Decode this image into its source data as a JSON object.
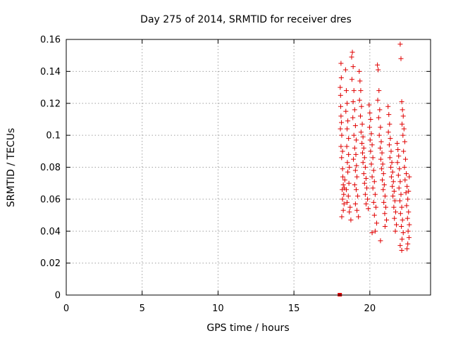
{
  "chart_data": {
    "type": "scatter",
    "title": "Day 275 of 2014, SRMTID for receiver dres",
    "xlabel": "GPS time / hours",
    "ylabel": "SRMTID / TECUs",
    "xlim": [
      0,
      24
    ],
    "ylim": [
      0,
      0.16
    ],
    "xticks": [
      0,
      5,
      10,
      15,
      20
    ],
    "xtick_labels": [
      "0",
      "5",
      "10",
      "15",
      "20"
    ],
    "yticks": [
      0,
      0.02,
      0.04,
      0.06,
      0.08,
      0.1,
      0.12,
      0.14,
      0.16
    ],
    "ytick_labels": [
      "0",
      "0.02",
      "0.04",
      "0.06",
      "0.08",
      "0.1",
      "0.12",
      "0.14",
      "0.16"
    ],
    "grid": true,
    "marker": "plus",
    "color": "#e00000",
    "zero_marker": {
      "x": 18.02,
      "y": 0.0
    },
    "series": [
      {
        "name": "SRMTID",
        "points": [
          [
            18.05,
            0.13
          ],
          [
            18.07,
            0.125
          ],
          [
            18.1,
            0.145
          ],
          [
            18.12,
            0.136
          ],
          [
            18.08,
            0.118
          ],
          [
            18.1,
            0.112
          ],
          [
            18.13,
            0.108
          ],
          [
            18.06,
            0.104
          ],
          [
            18.15,
            0.1
          ],
          [
            18.1,
            0.093
          ],
          [
            18.2,
            0.09
          ],
          [
            18.14,
            0.086
          ],
          [
            18.2,
            0.079
          ],
          [
            18.22,
            0.074
          ],
          [
            18.25,
            0.069
          ],
          [
            18.18,
            0.066
          ],
          [
            18.28,
            0.063
          ],
          [
            18.2,
            0.06
          ],
          [
            18.3,
            0.057
          ],
          [
            18.25,
            0.053
          ],
          [
            18.15,
            0.049
          ],
          [
            18.35,
            0.072
          ],
          [
            18.32,
            0.067
          ],
          [
            18.4,
            0.141
          ],
          [
            18.45,
            0.128
          ],
          [
            18.5,
            0.12
          ],
          [
            18.42,
            0.115
          ],
          [
            18.55,
            0.109
          ],
          [
            18.5,
            0.104
          ],
          [
            18.6,
            0.098
          ],
          [
            18.48,
            0.093
          ],
          [
            18.6,
            0.088
          ],
          [
            18.52,
            0.083
          ],
          [
            18.65,
            0.08
          ],
          [
            18.55,
            0.077
          ],
          [
            18.62,
            0.07
          ],
          [
            18.45,
            0.066
          ],
          [
            18.58,
            0.062
          ],
          [
            18.5,
            0.058
          ],
          [
            18.7,
            0.055
          ],
          [
            18.65,
            0.052
          ],
          [
            18.75,
            0.047
          ],
          [
            18.8,
            0.149
          ],
          [
            18.85,
            0.152
          ],
          [
            18.9,
            0.143
          ],
          [
            18.82,
            0.135
          ],
          [
            18.95,
            0.128
          ],
          [
            18.9,
            0.121
          ],
          [
            19.0,
            0.116
          ],
          [
            18.88,
            0.111
          ],
          [
            19.05,
            0.106
          ],
          [
            18.95,
            0.1
          ],
          [
            19.1,
            0.097
          ],
          [
            19.0,
            0.092
          ],
          [
            19.08,
            0.088
          ],
          [
            18.92,
            0.085
          ],
          [
            19.12,
            0.081
          ],
          [
            19.05,
            0.078
          ],
          [
            19.15,
            0.074
          ],
          [
            19.0,
            0.069
          ],
          [
            19.1,
            0.066
          ],
          [
            19.2,
            0.062
          ],
          [
            19.05,
            0.057
          ],
          [
            19.15,
            0.053
          ],
          [
            19.25,
            0.049
          ],
          [
            19.3,
            0.14
          ],
          [
            19.35,
            0.134
          ],
          [
            19.4,
            0.128
          ],
          [
            19.32,
            0.122
          ],
          [
            19.45,
            0.118
          ],
          [
            19.38,
            0.112
          ],
          [
            19.5,
            0.107
          ],
          [
            19.42,
            0.102
          ],
          [
            19.55,
            0.099
          ],
          [
            19.48,
            0.095
          ],
          [
            19.6,
            0.092
          ],
          [
            19.52,
            0.089
          ],
          [
            19.65,
            0.086
          ],
          [
            19.55,
            0.083
          ],
          [
            19.7,
            0.08
          ],
          [
            19.6,
            0.076
          ],
          [
            19.75,
            0.073
          ],
          [
            19.65,
            0.07
          ],
          [
            19.8,
            0.067
          ],
          [
            19.7,
            0.063
          ],
          [
            19.85,
            0.06
          ],
          [
            19.75,
            0.057
          ],
          [
            19.9,
            0.054
          ],
          [
            19.95,
            0.119
          ],
          [
            20.0,
            0.114
          ],
          [
            20.05,
            0.11
          ],
          [
            19.98,
            0.105
          ],
          [
            20.1,
            0.101
          ],
          [
            20.02,
            0.097
          ],
          [
            20.15,
            0.094
          ],
          [
            20.05,
            0.09
          ],
          [
            20.2,
            0.086
          ],
          [
            20.1,
            0.082
          ],
          [
            20.25,
            0.078
          ],
          [
            20.15,
            0.074
          ],
          [
            20.3,
            0.071
          ],
          [
            20.2,
            0.067
          ],
          [
            20.35,
            0.063
          ],
          [
            20.25,
            0.058
          ],
          [
            20.4,
            0.055
          ],
          [
            20.3,
            0.05
          ],
          [
            20.45,
            0.045
          ],
          [
            20.35,
            0.04
          ],
          [
            20.15,
            0.039
          ],
          [
            20.5,
            0.144
          ],
          [
            20.55,
            0.141
          ],
          [
            20.6,
            0.128
          ],
          [
            20.52,
            0.122
          ],
          [
            20.65,
            0.116
          ],
          [
            20.58,
            0.111
          ],
          [
            20.7,
            0.105
          ],
          [
            20.62,
            0.1
          ],
          [
            20.75,
            0.096
          ],
          [
            20.68,
            0.092
          ],
          [
            20.8,
            0.089
          ],
          [
            20.72,
            0.085
          ],
          [
            20.85,
            0.082
          ],
          [
            20.78,
            0.079
          ],
          [
            20.9,
            0.076
          ],
          [
            20.82,
            0.072
          ],
          [
            20.95,
            0.069
          ],
          [
            20.88,
            0.066
          ],
          [
            21.0,
            0.062
          ],
          [
            20.92,
            0.058
          ],
          [
            21.05,
            0.055
          ],
          [
            20.98,
            0.051
          ],
          [
            21.1,
            0.047
          ],
          [
            20.7,
            0.034
          ],
          [
            21.0,
            0.043
          ],
          [
            21.2,
            0.118
          ],
          [
            21.25,
            0.113
          ],
          [
            21.3,
            0.107
          ],
          [
            21.22,
            0.102
          ],
          [
            21.35,
            0.098
          ],
          [
            21.28,
            0.094
          ],
          [
            21.4,
            0.09
          ],
          [
            21.32,
            0.086
          ],
          [
            21.45,
            0.083
          ],
          [
            21.38,
            0.08
          ],
          [
            21.5,
            0.077
          ],
          [
            21.42,
            0.074
          ],
          [
            21.55,
            0.071
          ],
          [
            21.48,
            0.068
          ],
          [
            21.6,
            0.065
          ],
          [
            21.52,
            0.062
          ],
          [
            21.65,
            0.059
          ],
          [
            21.58,
            0.055
          ],
          [
            21.7,
            0.052
          ],
          [
            21.62,
            0.048
          ],
          [
            21.75,
            0.044
          ],
          [
            21.68,
            0.04
          ],
          [
            21.8,
            0.095
          ],
          [
            21.85,
            0.091
          ],
          [
            21.9,
            0.087
          ],
          [
            21.82,
            0.083
          ],
          [
            21.95,
            0.079
          ],
          [
            21.88,
            0.075
          ],
          [
            22.0,
            0.071
          ],
          [
            21.92,
            0.067
          ],
          [
            22.05,
            0.063
          ],
          [
            21.98,
            0.059
          ],
          [
            22.1,
            0.055
          ],
          [
            22.02,
            0.051
          ],
          [
            22.15,
            0.047
          ],
          [
            22.08,
            0.043
          ],
          [
            22.2,
            0.039
          ],
          [
            22.12,
            0.035
          ],
          [
            22.0,
            0.031
          ],
          [
            22.1,
            0.028
          ],
          [
            22.0,
            0.157
          ],
          [
            22.05,
            0.148
          ],
          [
            22.1,
            0.121
          ],
          [
            22.15,
            0.116
          ],
          [
            22.2,
            0.112
          ],
          [
            22.12,
            0.107
          ],
          [
            22.25,
            0.104
          ],
          [
            22.18,
            0.1
          ],
          [
            22.3,
            0.096
          ],
          [
            22.22,
            0.09
          ],
          [
            22.35,
            0.085
          ],
          [
            22.28,
            0.08
          ],
          [
            22.4,
            0.076
          ],
          [
            22.32,
            0.072
          ],
          [
            22.45,
            0.068
          ],
          [
            22.38,
            0.064
          ],
          [
            22.5,
            0.06
          ],
          [
            22.42,
            0.056
          ],
          [
            22.55,
            0.052
          ],
          [
            22.48,
            0.048
          ],
          [
            22.6,
            0.044
          ],
          [
            22.52,
            0.04
          ],
          [
            22.58,
            0.036
          ],
          [
            22.5,
            0.032
          ],
          [
            22.45,
            0.029
          ],
          [
            22.6,
            0.074
          ],
          [
            22.55,
            0.065
          ]
        ]
      }
    ]
  }
}
